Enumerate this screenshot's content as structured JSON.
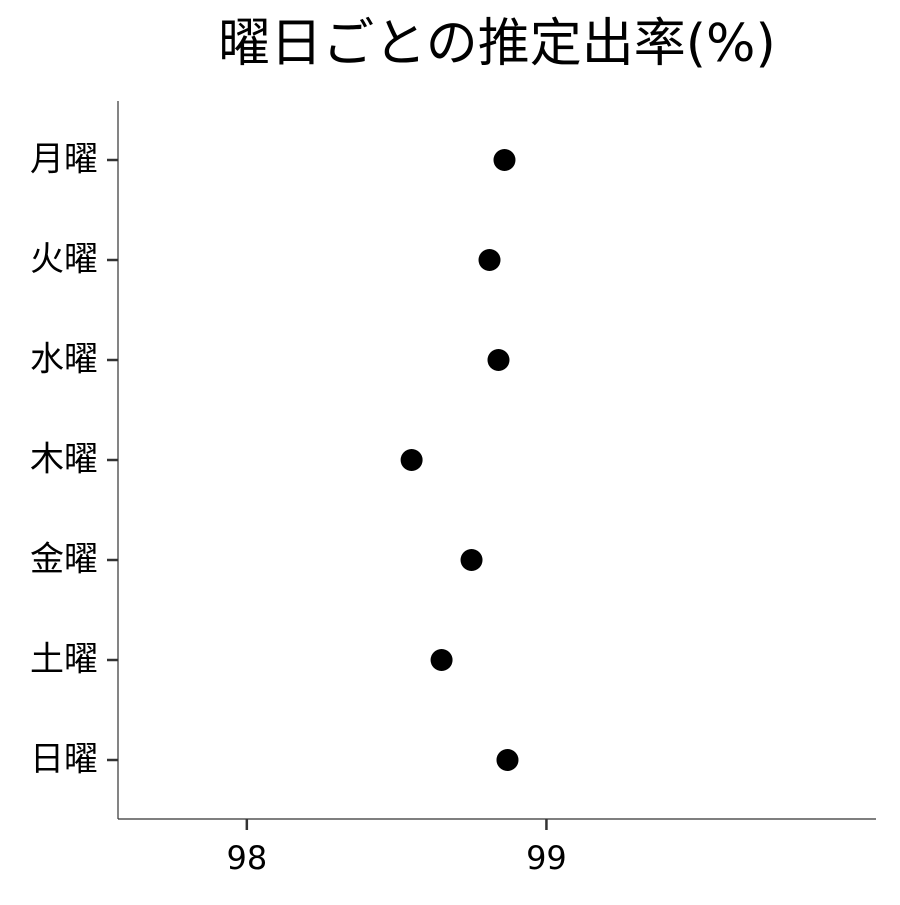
{
  "chart_data": {
    "type": "scatter",
    "title": "曜日ごとの推定出率(%)",
    "xlabel": "",
    "ylabel": "",
    "categories": [
      "月曜",
      "火曜",
      "水曜",
      "木曜",
      "金曜",
      "土曜",
      "日曜"
    ],
    "values": [
      98.86,
      98.81,
      98.84,
      98.55,
      98.75,
      98.65,
      98.87
    ],
    "x_ticks": [
      98,
      99
    ],
    "xlim": [
      97.57,
      100.1
    ],
    "grid": false,
    "colors": {
      "point": "#000000",
      "axis": "#333333",
      "text": "#000000"
    }
  }
}
